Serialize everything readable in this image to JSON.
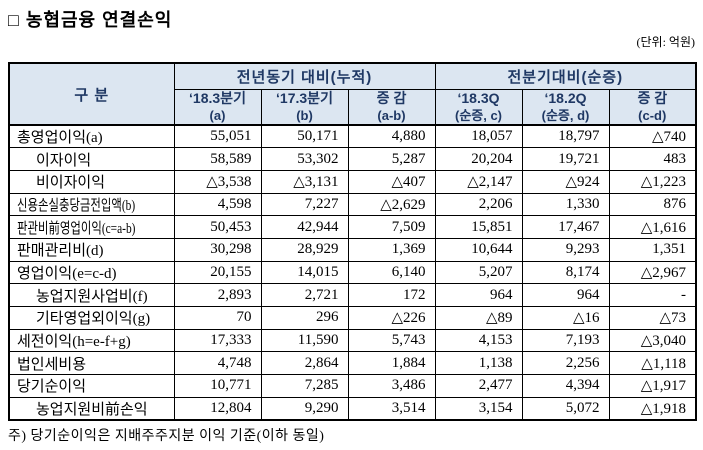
{
  "title": "□ 농협금융 연결손익",
  "unit_note": "(단위: 억원)",
  "footer_note": "주) 당기순이익은 지배주주지분 이익 기준(이하 동일)",
  "table": {
    "category_header": "구 분",
    "group_headers": [
      "전년동기 대비(누적)",
      "전분기대비(순증)"
    ],
    "columns": [
      {
        "l1": "‘18.3분기",
        "l2": "(a)"
      },
      {
        "l1": "‘17.3분기",
        "l2": "(b)"
      },
      {
        "l1": "증 감",
        "l2": "(a-b)"
      },
      {
        "l1": "‘18.3Q",
        "l2": "(순증, c)"
      },
      {
        "l1": "‘18.2Q",
        "l2": "(순증, d)"
      },
      {
        "l1": "증 감",
        "l2": "(c-d)"
      }
    ],
    "rows": [
      {
        "label": "총영업이익(a)",
        "indent": false,
        "condensed": false,
        "no_top": false,
        "values": [
          "55,051",
          "50,171",
          "4,880",
          "18,057",
          "18,797",
          "△740"
        ]
      },
      {
        "label": "이자이익",
        "indent": true,
        "condensed": false,
        "no_top": true,
        "values": [
          "58,589",
          "53,302",
          "5,287",
          "20,204",
          "19,721",
          "483"
        ]
      },
      {
        "label": "비이자이익",
        "indent": true,
        "condensed": false,
        "no_top": true,
        "values": [
          "△3,538",
          "△3,131",
          "△407",
          "△2,147",
          "△924",
          "△1,223"
        ]
      },
      {
        "label": "신용손실충당금전입액(b)",
        "indent": false,
        "condensed": true,
        "no_top": false,
        "values": [
          "4,598",
          "7,227",
          "△2,629",
          "2,206",
          "1,330",
          "876"
        ]
      },
      {
        "label": "판관비前영업이익(c=a-b)",
        "indent": false,
        "condensed": true,
        "no_top": false,
        "values": [
          "50,453",
          "42,944",
          "7,509",
          "15,851",
          "17,467",
          "△1,616"
        ]
      },
      {
        "label": "판매관리비(d)",
        "indent": false,
        "condensed": false,
        "no_top": false,
        "values": [
          "30,298",
          "28,929",
          "1,369",
          "10,644",
          "9,293",
          "1,351"
        ]
      },
      {
        "label": "영업이익(e=c-d)",
        "indent": false,
        "condensed": false,
        "no_top": false,
        "values": [
          "20,155",
          "14,015",
          "6,140",
          "5,207",
          "8,174",
          "△2,967"
        ]
      },
      {
        "label": "농업지원사업비(f)",
        "indent": true,
        "condensed": false,
        "no_top": false,
        "values": [
          "2,893",
          "2,721",
          "172",
          "964",
          "964",
          "-"
        ]
      },
      {
        "label": "기타영업외이익(g)",
        "indent": true,
        "condensed": false,
        "no_top": false,
        "values": [
          "70",
          "296",
          "△226",
          "△89",
          "△16",
          "△73"
        ]
      },
      {
        "label": "세전이익(h=e-f+g)",
        "indent": false,
        "condensed": false,
        "no_top": false,
        "values": [
          "17,333",
          "11,590",
          "5,743",
          "4,153",
          "7,193",
          "△3,040"
        ]
      },
      {
        "label": "법인세비용",
        "indent": false,
        "condensed": false,
        "no_top": false,
        "values": [
          "4,748",
          "2,864",
          "1,884",
          "1,138",
          "2,256",
          "△1,118"
        ]
      },
      {
        "label": "당기순이익",
        "indent": false,
        "condensed": false,
        "no_top": false,
        "values": [
          "10,771",
          "7,285",
          "3,486",
          "2,477",
          "4,394",
          "△1,917"
        ]
      },
      {
        "label": "농업지원비前손익",
        "indent": true,
        "condensed": false,
        "no_top": false,
        "values": [
          "12,804",
          "9,290",
          "3,514",
          "3,154",
          "5,072",
          "△1,918"
        ]
      }
    ]
  }
}
